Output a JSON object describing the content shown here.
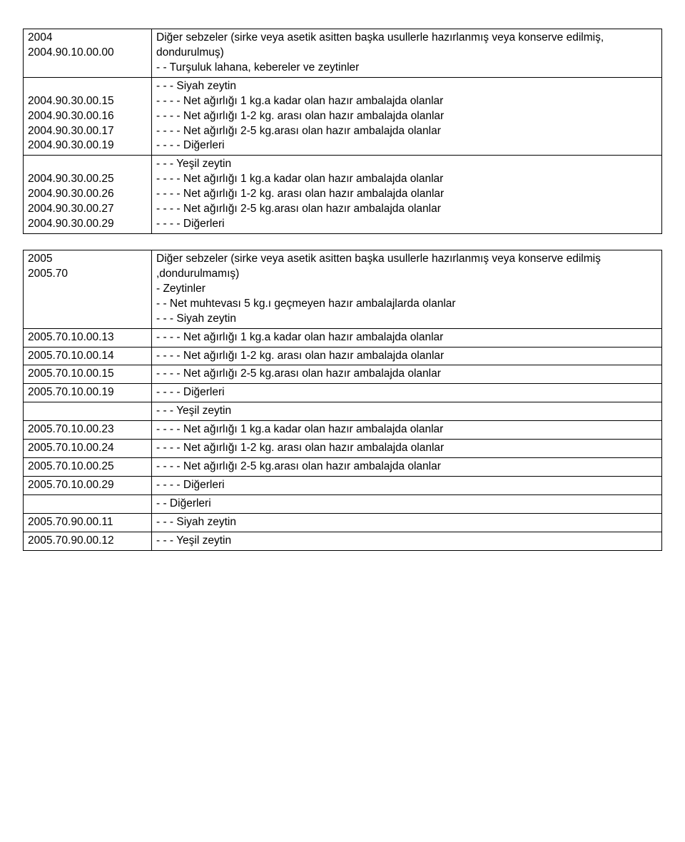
{
  "table1": {
    "rows": [
      {
        "code": "2004",
        "desc": "Diğer sebzeler (sirke veya asetik asitten başka usullerle hazırlanmış veya konserve edilmiş, dondurulmuş)"
      },
      {
        "code": "2004.90.10.00.00",
        "desc": "- - Turşuluk lahana, kebereler ve zeytinler"
      },
      {
        "code": "",
        "desc": "- - - Siyah zeytin"
      },
      {
        "code": "2004.90.30.00.15",
        "desc": "- - - - Net ağırlığı 1 kg.a kadar olan hazır ambalajda olanlar"
      },
      {
        "code": "2004.90.30.00.16",
        "desc": "- - - - Net ağırlığı 1-2 kg. arası olan hazır ambalajda olanlar"
      },
      {
        "code": "2004.90.30.00.17",
        "desc": "- - - - Net ağırlığı 2-5 kg.arası olan hazır ambalajda olanlar"
      },
      {
        "code": "2004.90.30.00.19",
        "desc": "- - - - Diğerleri"
      },
      {
        "code": "",
        "desc": "- - - Yeşil zeytin"
      },
      {
        "code": "2004.90.30.00.25",
        "desc": "- - - - Net ağırlığı 1 kg.a kadar olan hazır ambalajda olanlar"
      },
      {
        "code": "2004.90.30.00.26",
        "desc": "- - - - Net ağırlığı 1-2 kg. arası olan hazır ambalajda olanlar"
      },
      {
        "code": "2004.90.30.00.27",
        "desc": "- - - - Net ağırlığı 2-5 kg.arası olan hazır ambalajda olanlar"
      },
      {
        "code": "2004.90.30.00.29",
        "desc": "- - - - Diğerleri"
      }
    ]
  },
  "table2": {
    "rows": [
      {
        "code": "2005",
        "desc": "Diğer sebzeler (sirke veya asetik asitten başka usullerle hazırlanmış veya konserve edilmiş ,dondurulmamış)"
      },
      {
        "code": "2005.70",
        "desc": "- Zeytinler"
      },
      {
        "code": "",
        "desc": "- - Net muhtevası 5 kg.ı geçmeyen hazır ambalajlarda olanlar"
      },
      {
        "code": "",
        "desc": "- - - Siyah zeytin"
      },
      {
        "code": "2005.70.10.00.13",
        "desc": "- - - - Net ağırlığı 1 kg.a kadar olan hazır ambalajda olanlar"
      },
      {
        "code": "2005.70.10.00.14",
        "desc": "- - - - Net ağırlığı 1-2 kg. arası olan hazır ambalajda olanlar"
      },
      {
        "code": "2005.70.10.00.15",
        "desc": "- - - - Net ağırlığı 2-5 kg.arası olan hazır ambalajda olanlar"
      },
      {
        "code": "2005.70.10.00.19",
        "desc": "- - - - Diğerleri"
      },
      {
        "code": "",
        "desc": "- - - Yeşil zeytin"
      },
      {
        "code": "2005.70.10.00.23",
        "desc": "- - - - Net ağırlığı 1 kg.a kadar olan hazır ambalajda olanlar"
      },
      {
        "code": "2005.70.10.00.24",
        "desc": "- - - - Net ağırlığı 1-2 kg. arası olan hazır ambalajda olanlar"
      },
      {
        "code": "2005.70.10.00.25",
        "desc": "- - - - Net ağırlığı 2-5 kg.arası olan hazır ambalajda olanlar"
      },
      {
        "code": "2005.70.10.00.29",
        "desc": "- - - - Diğerleri"
      },
      {
        "code": "",
        "desc": "- - Diğerleri"
      },
      {
        "code": "2005.70.90.00.11",
        "desc": "- - - Siyah zeytin"
      },
      {
        "code": "2005.70.90.00.12",
        "desc": "- - - Yeşil zeytin"
      }
    ]
  }
}
